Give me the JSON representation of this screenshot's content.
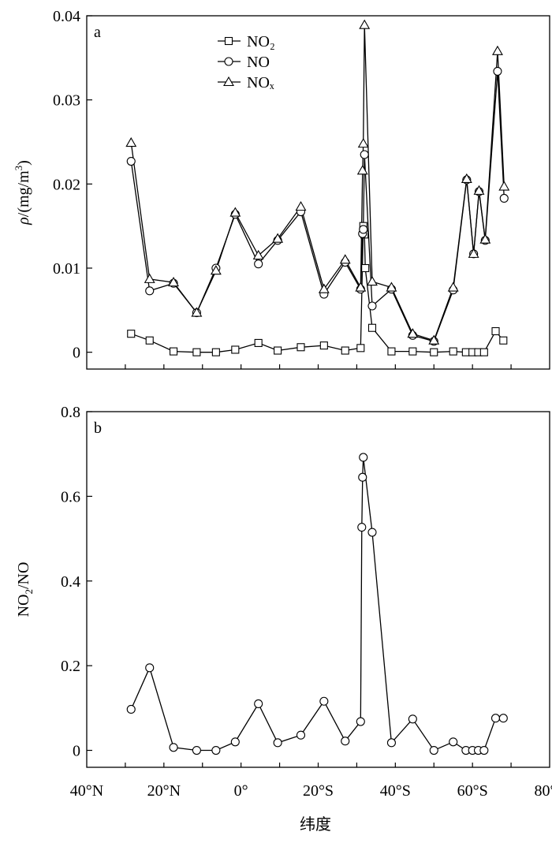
{
  "chart_data": [
    {
      "panel": "a",
      "type": "line",
      "ylabel": "ρ/(mg/m³)",
      "ylim": [
        -0.002,
        0.04
      ],
      "yticks": [
        "0",
        "0.01",
        "0.02",
        "0.03",
        "0.04"
      ],
      "xlim": [
        40,
        -80
      ],
      "legend_position": "top-center",
      "series": [
        {
          "name": "NO₂",
          "marker": "square",
          "points": [
            [
              28.5,
              0.0022
            ],
            [
              23.7,
              0.0014
            ],
            [
              17.5,
              0.0001
            ],
            [
              11.5,
              0.0
            ],
            [
              6.5,
              0.0
            ],
            [
              1.5,
              0.0003
            ],
            [
              -4.5,
              0.0011
            ],
            [
              -9.5,
              0.0002
            ],
            [
              -15.5,
              0.0006
            ],
            [
              -21.5,
              0.0008
            ],
            [
              -27.0,
              0.0002
            ],
            [
              -31.0,
              0.0005
            ],
            [
              -31.7,
              0.015
            ],
            [
              -32.0,
              0.014
            ],
            [
              -32.2,
              0.01
            ],
            [
              -34.0,
              0.0029
            ],
            [
              -39.0,
              0.0001
            ],
            [
              -44.5,
              0.0001
            ],
            [
              -50.0,
              0.0
            ],
            [
              -55.0,
              0.0001
            ],
            [
              -58.3,
              0.0
            ],
            [
              -60.0,
              0.0
            ],
            [
              -61.5,
              0.0
            ],
            [
              -63.0,
              0.0
            ],
            [
              -66.0,
              0.0025
            ],
            [
              -68.0,
              0.0014
            ]
          ]
        },
        {
          "name": "NO",
          "marker": "circle",
          "points": [
            [
              28.5,
              0.0227
            ],
            [
              23.7,
              0.0073
            ],
            [
              17.5,
              0.0082
            ],
            [
              11.5,
              0.0047
            ],
            [
              6.5,
              0.01
            ],
            [
              1.5,
              0.0164
            ],
            [
              -4.5,
              0.0105
            ],
            [
              -9.5,
              0.0133
            ],
            [
              -15.5,
              0.0167
            ],
            [
              -21.5,
              0.0069
            ],
            [
              -27.0,
              0.0107
            ],
            [
              -31.0,
              0.0075
            ],
            [
              -31.5,
              0.0141
            ],
            [
              -31.7,
              0.0146
            ],
            [
              -32.0,
              0.0235
            ],
            [
              -34.0,
              0.0055
            ],
            [
              -39.0,
              0.0075
            ],
            [
              -44.5,
              0.002
            ],
            [
              -50.0,
              0.0013
            ],
            [
              -55.0,
              0.0074
            ],
            [
              -58.5,
              0.0205
            ],
            [
              -60.3,
              0.0117
            ],
            [
              -61.7,
              0.0191
            ],
            [
              -63.3,
              0.0133
            ],
            [
              -66.5,
              0.0334
            ],
            [
              -68.2,
              0.0183
            ]
          ]
        },
        {
          "name": "NOₓ",
          "marker": "triangle",
          "points": [
            [
              28.5,
              0.0249
            ],
            [
              23.7,
              0.0087
            ],
            [
              17.5,
              0.0083
            ],
            [
              11.5,
              0.0047
            ],
            [
              6.5,
              0.0097
            ],
            [
              1.5,
              0.0166
            ],
            [
              -4.5,
              0.0115
            ],
            [
              -9.5,
              0.0135
            ],
            [
              -15.5,
              0.0173
            ],
            [
              -21.5,
              0.0075
            ],
            [
              -27.0,
              0.011
            ],
            [
              -31.0,
              0.0077
            ],
            [
              -31.5,
              0.0216
            ],
            [
              -31.7,
              0.0248
            ],
            [
              -32.0,
              0.0389
            ],
            [
              -34.0,
              0.0084
            ],
            [
              -39.0,
              0.0077
            ],
            [
              -44.5,
              0.0022
            ],
            [
              -50.0,
              0.0014
            ],
            [
              -55.0,
              0.0077
            ],
            [
              -58.5,
              0.0206
            ],
            [
              -60.3,
              0.0117
            ],
            [
              -61.7,
              0.0192
            ],
            [
              -63.3,
              0.0134
            ],
            [
              -66.5,
              0.0358
            ],
            [
              -68.2,
              0.0197
            ]
          ]
        }
      ]
    },
    {
      "panel": "b",
      "type": "line",
      "ylabel": "NO₂/NO",
      "ylim": [
        -0.04,
        0.8
      ],
      "yticks": [
        "0",
        "0.2",
        "0.4",
        "0.6",
        "0.8"
      ],
      "xlim": [
        40,
        -80
      ],
      "xticks": [
        "40°N",
        "20°N",
        "0°",
        "20°S",
        "40°S",
        "60°S",
        "80°S"
      ],
      "xlabel": "纬度",
      "series": [
        {
          "marker": "circle",
          "points": [
            [
              28.5,
              0.097
            ],
            [
              23.7,
              0.195
            ],
            [
              17.5,
              0.007
            ],
            [
              11.5,
              0.0
            ],
            [
              6.5,
              0.0
            ],
            [
              1.5,
              0.02
            ],
            [
              -4.5,
              0.11
            ],
            [
              -9.5,
              0.018
            ],
            [
              -15.5,
              0.036
            ],
            [
              -21.5,
              0.116
            ],
            [
              -27.0,
              0.022
            ],
            [
              -31.0,
              0.068
            ],
            [
              -31.3,
              0.527
            ],
            [
              -31.5,
              0.645
            ],
            [
              -31.7,
              0.692
            ],
            [
              -34.0,
              0.515
            ],
            [
              -39.0,
              0.018
            ],
            [
              -44.5,
              0.074
            ],
            [
              -50.0,
              0.0
            ],
            [
              -55.0,
              0.02
            ],
            [
              -58.3,
              0.0
            ],
            [
              -60.0,
              0.0
            ],
            [
              -61.5,
              0.0
            ],
            [
              -63.0,
              0.0
            ],
            [
              -66.0,
              0.076
            ],
            [
              -68.0,
              0.076
            ]
          ]
        }
      ]
    }
  ],
  "labels": {
    "panel_a": "a",
    "panel_b": "b",
    "xlabel": "纬度"
  }
}
